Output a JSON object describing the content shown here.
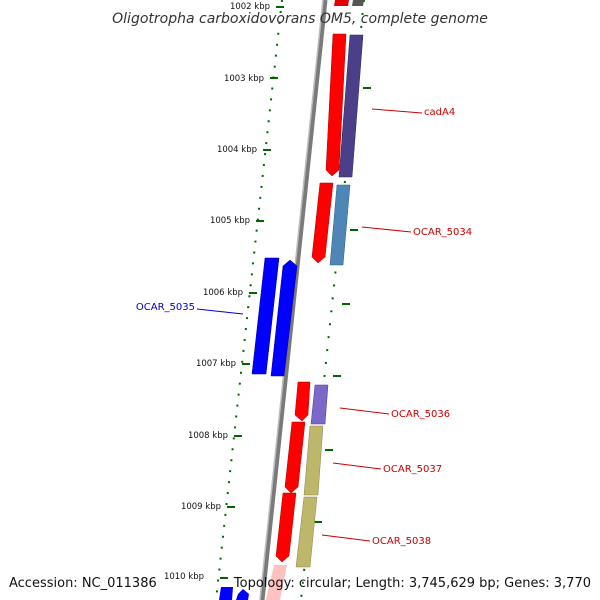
{
  "title": "Oligotropha carboxidovorans OM5, complete genome",
  "footer": {
    "accession": "Accession: NC_011386",
    "stats": "Topology: circular; Length: 3,745,629 bp; Genes: 3,770"
  },
  "scale": {
    "ticks": [
      "1002 kbp",
      "1003 kbp",
      "1004 kbp",
      "1005 kbp",
      "1006 kbp",
      "1007 kbp",
      "1008 kbp",
      "1009 kbp",
      "1010 kbp"
    ]
  },
  "genes": [
    {
      "name": "cadA4",
      "color": "#cc0000"
    },
    {
      "name": "OCAR_5034",
      "color": "#cc0000"
    },
    {
      "name": "OCAR_5035",
      "color": "#0000cc"
    },
    {
      "name": "OCAR_5036",
      "color": "#cc0000"
    },
    {
      "name": "OCAR_5037",
      "color": "#cc0000"
    },
    {
      "name": "OCAR_5038",
      "color": "#cc0000"
    }
  ],
  "colors": {
    "backbone": "#808080",
    "cds_forward": "#ff0000",
    "cds_reverse": "#0000ff",
    "gc_skew_tick": "#006600",
    "feature_purple": "#4b3f8a",
    "feature_steel": "#4f86b8",
    "feature_khaki": "#bdb76b",
    "feature_lavender": "#7b68c9"
  }
}
